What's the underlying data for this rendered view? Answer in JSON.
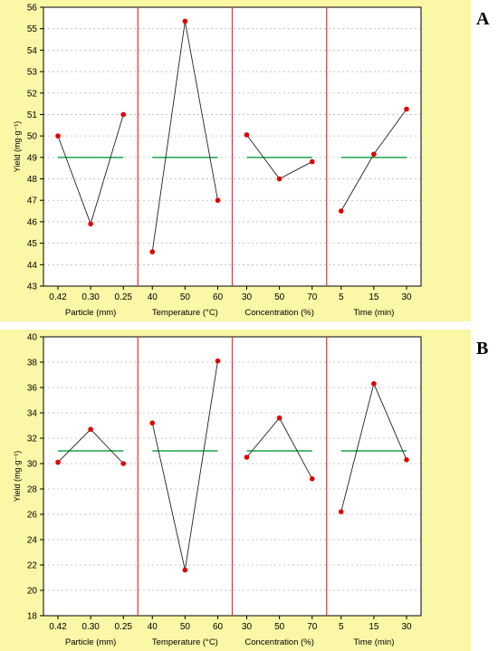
{
  "chart_data": [
    {
      "panel_label": "A",
      "type": "line",
      "ylabel": "Yield (mg·g⁻¹)",
      "ylim": [
        43,
        56
      ],
      "yticks": [
        43,
        44,
        45,
        46,
        47,
        48,
        49,
        50,
        51,
        52,
        53,
        54,
        55,
        56
      ],
      "grid": true,
      "mean_line": 49.0,
      "factors": [
        {
          "name": "Particle (mm)",
          "categories": [
            "0.42",
            "0.30",
            "0.25"
          ],
          "values": [
            50.0,
            45.9,
            51.0
          ]
        },
        {
          "name": "Temperature (°C)",
          "categories": [
            "40",
            "50",
            "60"
          ],
          "values": [
            44.6,
            55.35,
            47.0
          ]
        },
        {
          "name": "Concentration (%)",
          "categories": [
            "30",
            "50",
            "70"
          ],
          "values": [
            50.05,
            48.0,
            48.8
          ]
        },
        {
          "name": "Time (min)",
          "categories": [
            "5",
            "15",
            "30"
          ],
          "values": [
            46.5,
            49.15,
            51.25
          ]
        }
      ]
    },
    {
      "panel_label": "B",
      "type": "line",
      "ylabel": "Yield (mg·g⁻¹)",
      "ylim": [
        18,
        40
      ],
      "yticks": [
        18,
        20,
        22,
        24,
        26,
        28,
        30,
        32,
        34,
        36,
        38,
        40
      ],
      "grid": true,
      "mean_line": 31.0,
      "factors": [
        {
          "name": "Particle (mm)",
          "categories": [
            "0.42",
            "0.30",
            "0.25"
          ],
          "values": [
            30.1,
            32.7,
            30.0
          ]
        },
        {
          "name": "Temperature (°C)",
          "categories": [
            "40",
            "50",
            "60"
          ],
          "values": [
            33.2,
            21.6,
            38.1
          ]
        },
        {
          "name": "Concentration (%)",
          "categories": [
            "30",
            "50",
            "70"
          ],
          "values": [
            30.5,
            33.6,
            28.8
          ]
        },
        {
          "name": "Time (min)",
          "categories": [
            "5",
            "15",
            "30"
          ],
          "values": [
            26.2,
            36.3,
            30.3
          ]
        }
      ]
    }
  ],
  "colors": {
    "panel_background": "#faf7a6",
    "plot_background": "#ffffff",
    "separator": "#e83030",
    "mean_line": "#1aa34a",
    "marker": "#e00000",
    "series_line": "#222222",
    "grid": "#b8b8b8"
  }
}
